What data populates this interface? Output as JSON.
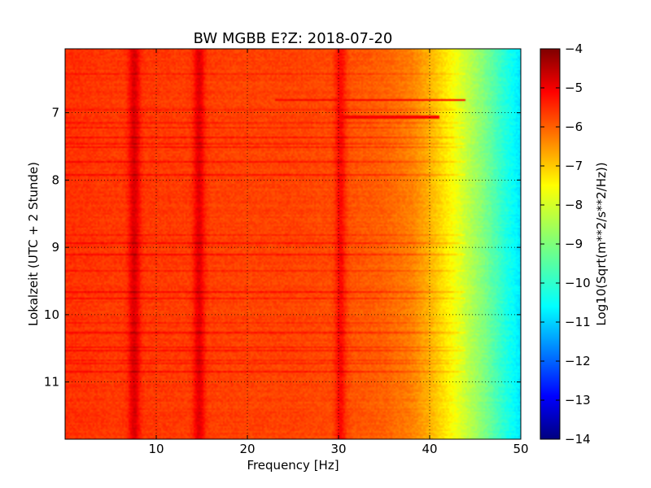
{
  "chart_data": {
    "type": "heatmap",
    "title": "BW MGBB E?Z: 2018-07-20",
    "xlabel": "Frequency [Hz]",
    "ylabel": "Lokalzeit (UTC + 2 Stunde)",
    "xlim": [
      0,
      50
    ],
    "ylim": [
      11.85,
      6.05
    ],
    "y_inverted": true,
    "x_ticks": [
      10,
      20,
      30,
      40,
      50
    ],
    "x_tick_labels": [
      "10",
      "20",
      "30",
      "40",
      "50"
    ],
    "y_ticks": [
      7,
      8,
      9,
      10,
      11
    ],
    "y_tick_labels": [
      "7",
      "8",
      "9",
      "10",
      "11"
    ],
    "grid": true,
    "colormap": "jet",
    "colorbar": {
      "label": "Log10(Sqrt(m**2/s**2/Hz))",
      "range": [
        -14,
        -4
      ],
      "ticks": [
        -4,
        -5,
        -6,
        -7,
        -8,
        -9,
        -10,
        -11,
        -12,
        -13,
        -14
      ],
      "tick_labels": [
        "−4",
        "−5",
        "−6",
        "−7",
        "−8",
        "−9",
        "−10",
        "−11",
        "−12",
        "−13",
        "−14"
      ]
    },
    "spectral_profile": {
      "frequency_hz": [
        0,
        5,
        10,
        20,
        25,
        30,
        35,
        38,
        40,
        42,
        44,
        46,
        48,
        50
      ],
      "value": [
        -5.7,
        -5.8,
        -5.8,
        -5.9,
        -5.9,
        -6.0,
        -6.2,
        -6.5,
        -7.0,
        -7.6,
        -8.3,
        -9.0,
        -9.8,
        -10.5
      ]
    },
    "peaks": [
      {
        "frequency_hz": 7.6,
        "value": -4.9
      },
      {
        "frequency_hz": 14.7,
        "value": -5.0
      },
      {
        "frequency_hz": 30.2,
        "value": -5.3
      }
    ],
    "bands": [
      {
        "time_h": 6.8,
        "freq_range_hz": [
          23,
          44
        ],
        "value": -5.2
      },
      {
        "time_h": 7.05,
        "freq_range_hz": [
          30,
          41
        ],
        "value": -5.2
      }
    ]
  }
}
